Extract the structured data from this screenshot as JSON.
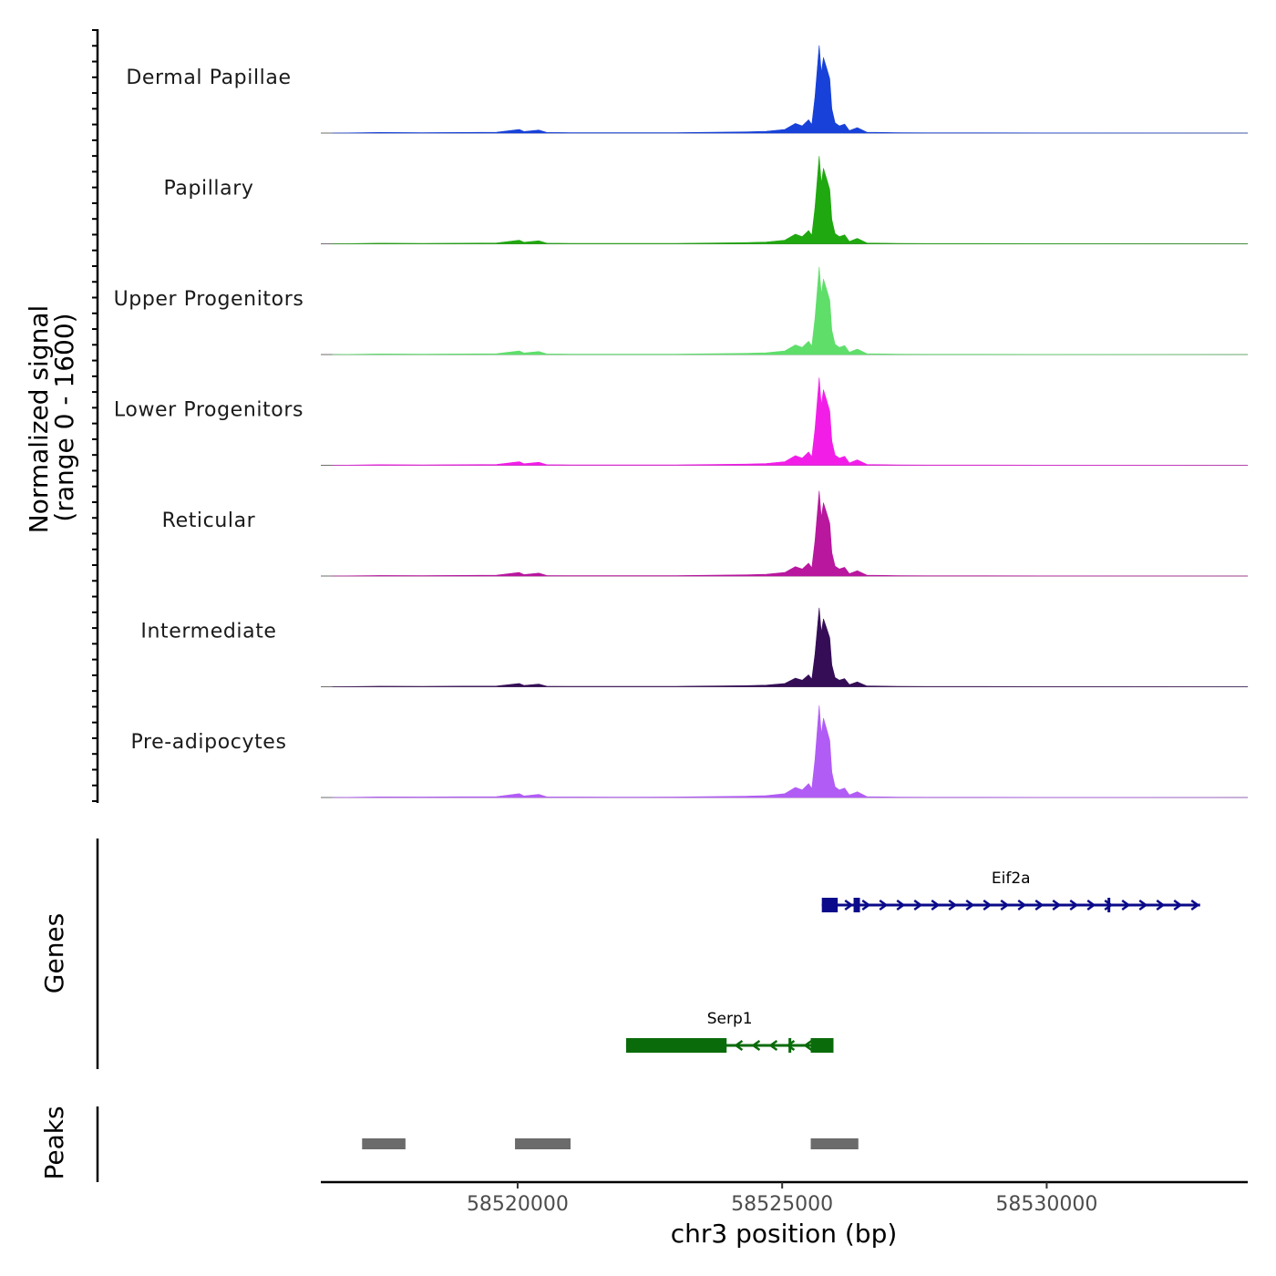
{
  "chart_data": {
    "type": "area",
    "chromosome": "chr3",
    "xlabel": "chr3 position (bp)",
    "xlim": [
      58516280,
      58533800
    ],
    "x_ticks": [
      58520000,
      58525000,
      58530000
    ],
    "x_tick_labels": [
      "58520000",
      "58525000",
      "58530000"
    ],
    "coverage": {
      "ylabel": "Normalized signal",
      "ylabel_range": "(range 0 - 1600)",
      "ylim": [
        0,
        1600
      ],
      "peak_shape": [
        [
          58516500,
          0
        ],
        [
          58517400,
          10
        ],
        [
          58518200,
          8
        ],
        [
          58519600,
          14
        ],
        [
          58520030,
          60
        ],
        [
          58520120,
          25
        ],
        [
          58520400,
          50
        ],
        [
          58520550,
          10
        ],
        [
          58521000,
          8
        ],
        [
          58522000,
          6
        ],
        [
          58523000,
          8
        ],
        [
          58524300,
          20
        ],
        [
          58524700,
          30
        ],
        [
          58525050,
          60
        ],
        [
          58525250,
          160
        ],
        [
          58525380,
          120
        ],
        [
          58525500,
          220
        ],
        [
          58525560,
          140
        ],
        [
          58525620,
          600
        ],
        [
          58525700,
          1450
        ],
        [
          58525740,
          1000
        ],
        [
          58525780,
          1250
        ],
        [
          58525850,
          1050
        ],
        [
          58525900,
          900
        ],
        [
          58525940,
          400
        ],
        [
          58526000,
          170
        ],
        [
          58526080,
          120
        ],
        [
          58526180,
          150
        ],
        [
          58526270,
          40
        ],
        [
          58526420,
          90
        ],
        [
          58526600,
          15
        ],
        [
          58527200,
          6
        ],
        [
          58528800,
          5
        ],
        [
          58533800,
          0
        ]
      ],
      "tracks": [
        {
          "label": "Dermal Papillae",
          "color": "#1741d9",
          "scale": 1.0
        },
        {
          "label": "Papillary",
          "color": "#1fa80f",
          "scale": 1.0
        },
        {
          "label": "Upper Progenitors",
          "color": "#5fde6a",
          "scale": 1.0
        },
        {
          "label": "Lower Progenitors",
          "color": "#f21ee8",
          "scale": 1.0
        },
        {
          "label": "Reticular",
          "color": "#b8179e",
          "scale": 0.97
        },
        {
          "label": "Intermediate",
          "color": "#350d57",
          "scale": 0.9
        },
        {
          "label": "Pre-adipocytes",
          "color": "#b15cf5",
          "scale": 1.05
        }
      ]
    },
    "genes": {
      "title": "Genes",
      "items": [
        {
          "name": "Eif2a",
          "color": "#0a0a8a",
          "strand": "+",
          "start": 58525750,
          "end": 58532900,
          "exons": [
            [
              58525750,
              58526050
            ],
            [
              58526350,
              58526470
            ],
            [
              58531150,
              58531200
            ]
          ]
        },
        {
          "name": "Serp1",
          "color": "#0a6b0a",
          "strand": "-",
          "start": 58522050,
          "end": 58525970,
          "exons": [
            [
              58522050,
              58523950
            ],
            [
              58525120,
              58525160
            ],
            [
              58525540,
              58525970
            ]
          ]
        }
      ]
    },
    "peaks": {
      "title": "Peaks",
      "color": "#6b6b6b",
      "items": [
        [
          58517060,
          58517880
        ],
        [
          58519950,
          58521000
        ],
        [
          58525540,
          58526440
        ]
      ]
    }
  }
}
